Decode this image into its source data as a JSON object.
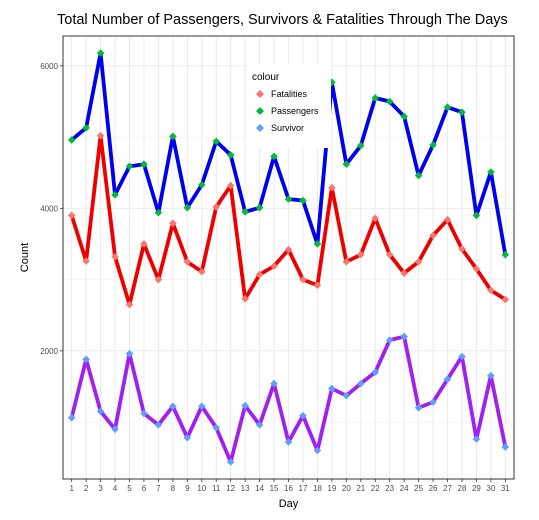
{
  "chart_data": {
    "type": "line",
    "title": "Total Number of Passengers, Survivors & Fatalities Through The Days",
    "xlabel": "Day",
    "ylabel": "Count",
    "x": [
      1,
      2,
      3,
      4,
      5,
      6,
      7,
      8,
      9,
      10,
      11,
      12,
      13,
      14,
      15,
      16,
      17,
      18,
      19,
      20,
      21,
      22,
      23,
      24,
      25,
      26,
      27,
      28,
      29,
      30,
      31
    ],
    "x_ticks": [
      "1",
      "2",
      "3",
      "4",
      "5",
      "6",
      "7",
      "8",
      "9",
      "10",
      "11",
      "12",
      "13",
      "14",
      "15",
      "16",
      "17",
      "18",
      "19",
      "20",
      "21",
      "22",
      "23",
      "24",
      "25",
      "26",
      "27",
      "28",
      "29",
      "30",
      "31"
    ],
    "y_ticks": [
      2000,
      4000,
      6000
    ],
    "y_tick_labels": [
      "2000",
      "4000",
      "6000"
    ],
    "xlim": [
      0.4,
      31.6
    ],
    "ylim": [
      200,
      6420
    ],
    "grid": true,
    "legend": {
      "title": "colour",
      "placement": "top-center inside plot",
      "entries": [
        "Fatalities",
        "Passengers",
        "Survivor"
      ]
    },
    "series": [
      {
        "name": "Passengers",
        "line_color": "#0000EE",
        "marker_color": "#00BA38",
        "values": [
          4960,
          5130,
          6180,
          4190,
          4590,
          4620,
          3940,
          5010,
          4010,
          4330,
          4940,
          4750,
          3950,
          4010,
          4730,
          4130,
          4110,
          3500,
          5770,
          4620,
          4880,
          5550,
          5500,
          5290,
          4460,
          4890,
          5420,
          5350,
          3900,
          4510,
          3350
        ]
      },
      {
        "name": "Fatalities",
        "line_color": "#EE0000",
        "marker_color": "#F8766D",
        "values": [
          3900,
          3260,
          5020,
          3320,
          2650,
          3500,
          3000,
          3790,
          3250,
          3110,
          4020,
          4320,
          2730,
          3070,
          3190,
          3420,
          3000,
          2920,
          4290,
          3250,
          3350,
          3860,
          3350,
          3090,
          3250,
          3620,
          3840,
          3430,
          3150,
          2850,
          2720
        ]
      },
      {
        "name": "Survivor",
        "line_color": "#A020F0",
        "marker_color": "#619CFF",
        "values": [
          1060,
          1880,
          1150,
          900,
          1960,
          1120,
          960,
          1220,
          780,
          1220,
          920,
          440,
          1230,
          960,
          1540,
          720,
          1090,
          600,
          1470,
          1370,
          1540,
          1700,
          2150,
          2200,
          1200,
          1280,
          1600,
          1920,
          760,
          1650,
          650
        ]
      }
    ]
  }
}
